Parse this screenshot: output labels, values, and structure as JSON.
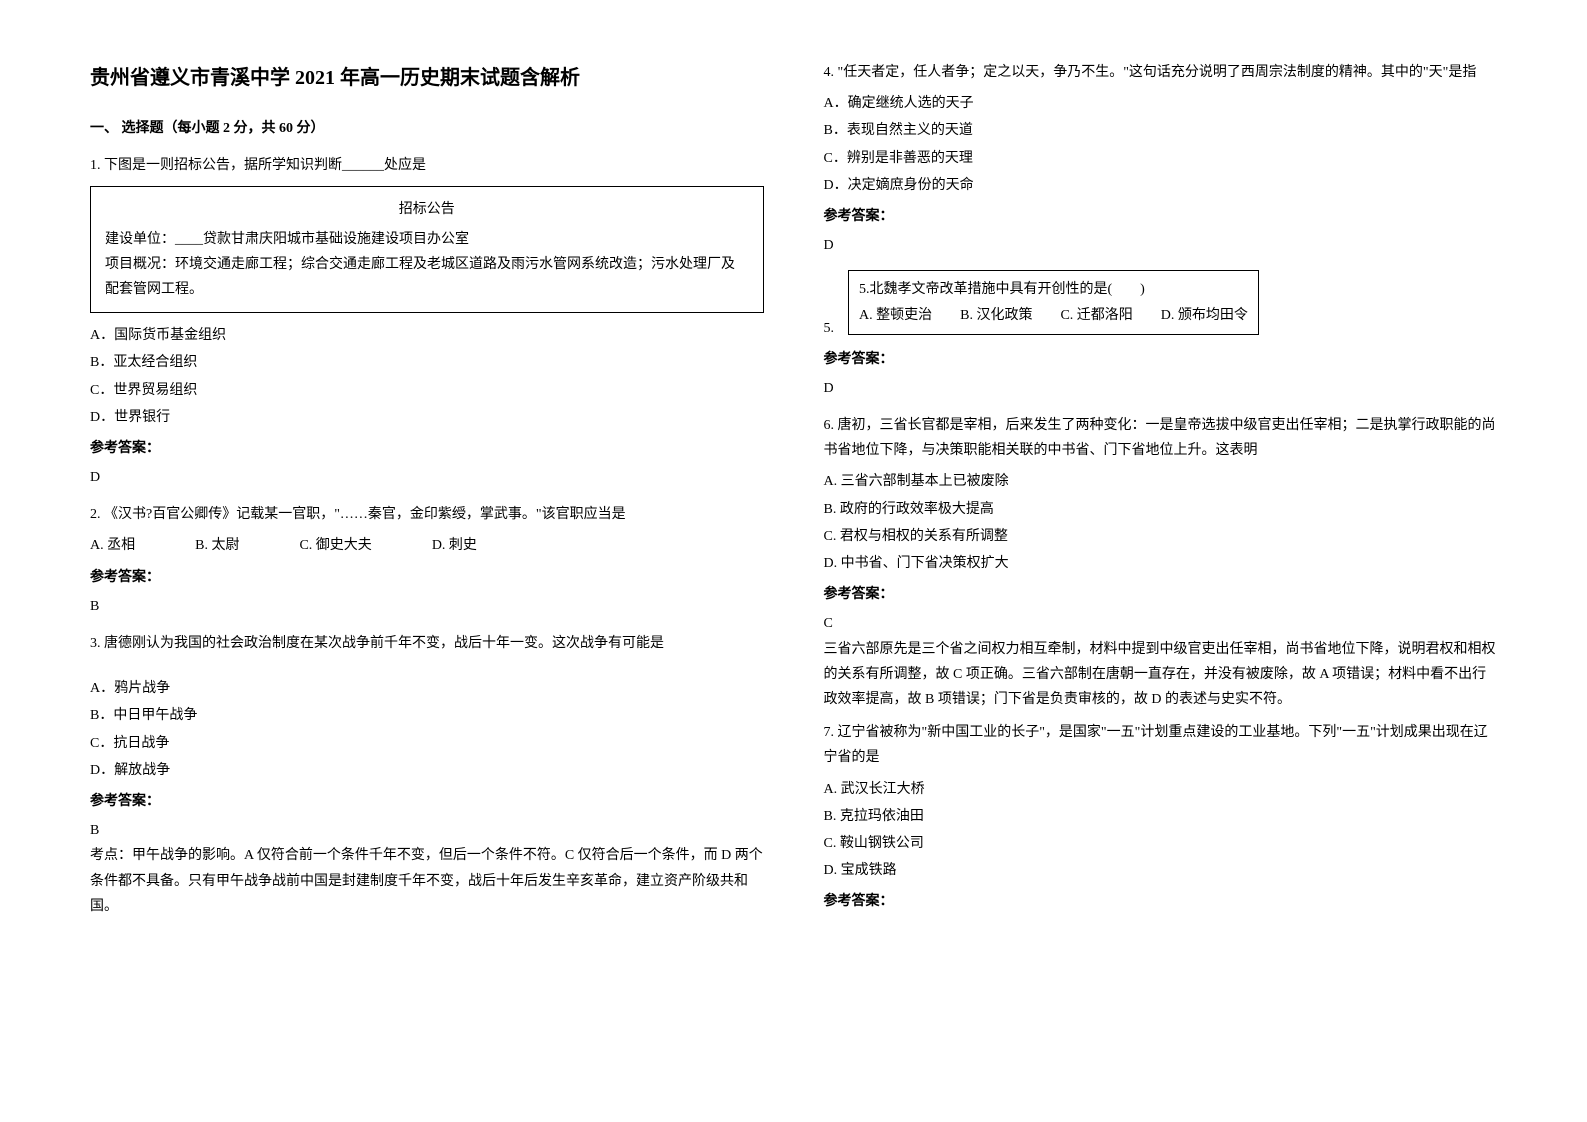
{
  "title": "贵州省遵义市青溪中学 2021 年高一历史期末试题含解析",
  "sectionHeader": "一、 选择题（每小题 2 分，共 60 分）",
  "q1": {
    "text": "1. 下图是一则招标公告，据所学知识判断______处应是",
    "noticeTitle": "招标公告",
    "noticeLine1": "建设单位：____贷款甘肃庆阳城市基础设施建设项目办公室",
    "noticeLine2": "项目概况：环境交通走廊工程；综合交通走廊工程及老城区道路及雨污水管网系统改造；污水处理厂及配套管网工程。",
    "optA": "A．国际货币基金组织",
    "optB": "B．亚太经合组织",
    "optC": "C．世界贸易组织",
    "optD": "D．世界银行",
    "answerLabel": "参考答案：",
    "answer": "D"
  },
  "q2": {
    "text": "2. 《汉书?百官公卿传》记载某一官职，\"……秦官，金印紫绶，掌武事。\"该官职应当是",
    "optA": "A. 丞相",
    "optB": "B. 太尉",
    "optC": "C. 御史大夫",
    "optD": "D. 刺史",
    "answerLabel": "参考答案：",
    "answer": "B"
  },
  "q3": {
    "text": "3. 唐德刚认为我国的社会政治制度在某次战争前千年不变，战后十年一变。这次战争有可能是",
    "optA": "A．鸦片战争",
    "optB": "B．中日甲午战争",
    "optC": "C．抗日战争",
    "optD": "D．解放战争",
    "answerLabel": "参考答案：",
    "answer": "B",
    "explanation": "考点：甲午战争的影响。A 仅符合前一个条件千年不变，但后一个条件不符。C 仅符合后一个条件，而 D 两个条件都不具备。只有甲午战争战前中国是封建制度千年不变，战后十年后发生辛亥革命，建立资产阶级共和国。"
  },
  "q4": {
    "text": "4. \"任天者定，任人者争；定之以天，争乃不生。\"这句话充分说明了西周宗法制度的精神。其中的\"天\"是指",
    "optA": "A．确定继统人选的天子",
    "optB": "B．表现自然主义的天道",
    "optC": "C．辨别是非善恶的天理",
    "optD": "D．决定嫡庶身份的天命",
    "answerLabel": "参考答案：",
    "answer": "D"
  },
  "q5": {
    "prefix": "5.",
    "boxLine1": "5.北魏孝文帝改革措施中具有开创性的是(　　)",
    "boxLine2": "A. 整顿吏治　　B. 汉化政策　　C. 迁都洛阳　　D. 颁布均田令",
    "answerLabel": "参考答案：",
    "answer": "D"
  },
  "q6": {
    "text": "6. 唐初，三省长官都是宰相，后来发生了两种变化：一是皇帝选拔中级官吏出任宰相；二是执掌行政职能的尚书省地位下降，与决策职能相关联的中书省、门下省地位上升。这表明",
    "optA": "A. 三省六部制基本上已被废除",
    "optB": "B. 政府的行政效率极大提高",
    "optC": "C. 君权与相权的关系有所调整",
    "optD": "D. 中书省、门下省决策权扩大",
    "answerLabel": "参考答案：",
    "answer": "C",
    "explanation": "三省六部原先是三个省之间权力相互牵制，材料中提到中级官吏出任宰相，尚书省地位下降，说明君权和相权的关系有所调整，故 C 项正确。三省六部制在唐朝一直存在，并没有被废除，故 A 项错误；材料中看不出行政效率提高，故 B 项错误；门下省是负责审核的，故 D 的表述与史实不符。"
  },
  "q7": {
    "text": "7. 辽宁省被称为\"新中国工业的长子\"，是国家\"一五\"计划重点建设的工业基地。下列\"一五\"计划成果出现在辽宁省的是",
    "optA": "A. 武汉长江大桥",
    "optB": "B. 克拉玛依油田",
    "optC": "C. 鞍山钢铁公司",
    "optD": "D. 宝成铁路",
    "answerLabel": "参考答案："
  }
}
